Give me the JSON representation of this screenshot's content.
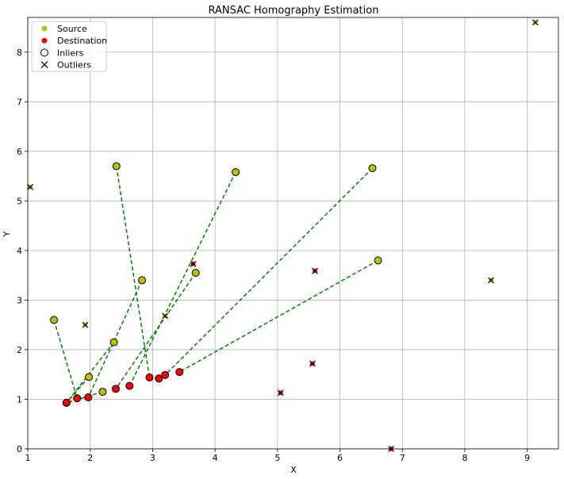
{
  "chart_data": {
    "type": "scatter",
    "title": "RANSAC Homography Estimation",
    "xlabel": "X",
    "ylabel": "Y",
    "xlim": [
      1.0,
      9.5
    ],
    "ylim": [
      0.0,
      8.7
    ],
    "xticks": [
      1,
      2,
      3,
      4,
      5,
      6,
      7,
      8,
      9
    ],
    "yticks": [
      0,
      1,
      2,
      3,
      4,
      5,
      6,
      7,
      8
    ],
    "grid": true,
    "legend_position": "top-left",
    "legend": [
      {
        "label": "Source",
        "marker": "dot",
        "color": "#bfbf00"
      },
      {
        "label": "Destination",
        "marker": "dot",
        "color": "#ff0000"
      },
      {
        "label": "Inliers",
        "marker": "open-circle",
        "color": "#000000"
      },
      {
        "label": "Outliers",
        "marker": "x",
        "color": "#000000"
      }
    ],
    "colors": {
      "source": "#bfbf00",
      "destination": "#ff0000",
      "match_line": "#008000",
      "grid": "#b0b0b0"
    },
    "inlier_pairs": [
      {
        "src": [
          1.42,
          2.6
        ],
        "dst": [
          1.79,
          1.02
        ]
      },
      {
        "src": [
          1.98,
          1.45
        ],
        "dst": [
          1.62,
          0.93
        ]
      },
      {
        "src": [
          2.38,
          2.15
        ],
        "dst": [
          1.62,
          0.93
        ]
      },
      {
        "src": [
          2.2,
          1.15
        ],
        "dst": [
          1.62,
          0.93
        ]
      },
      {
        "src": [
          2.42,
          5.7
        ],
        "dst": [
          2.95,
          1.44
        ]
      },
      {
        "src": [
          2.83,
          3.4
        ],
        "dst": [
          1.97,
          1.04
        ]
      },
      {
        "src": [
          4.33,
          5.58
        ],
        "dst": [
          2.63,
          1.27
        ]
      },
      {
        "src": [
          3.69,
          3.55
        ],
        "dst": [
          2.41,
          1.21
        ]
      },
      {
        "src": [
          6.52,
          5.66
        ],
        "dst": [
          3.2,
          1.49
        ]
      },
      {
        "src": [
          6.61,
          3.8
        ],
        "dst": [
          3.43,
          1.55
        ]
      },
      {
        "src": [
          3.1,
          1.42
        ],
        "dst": [
          3.1,
          1.42
        ]
      }
    ],
    "source_outliers": [
      [
        1.04,
        5.28
      ],
      [
        1.92,
        2.5
      ],
      [
        3.2,
        2.68
      ],
      [
        8.42,
        3.4
      ],
      [
        9.13,
        8.6
      ]
    ],
    "destination_outliers": [
      [
        3.65,
        3.73
      ],
      [
        5.6,
        3.59
      ],
      [
        5.56,
        1.72
      ],
      [
        5.05,
        1.13
      ],
      [
        6.82,
        0.0
      ]
    ]
  }
}
